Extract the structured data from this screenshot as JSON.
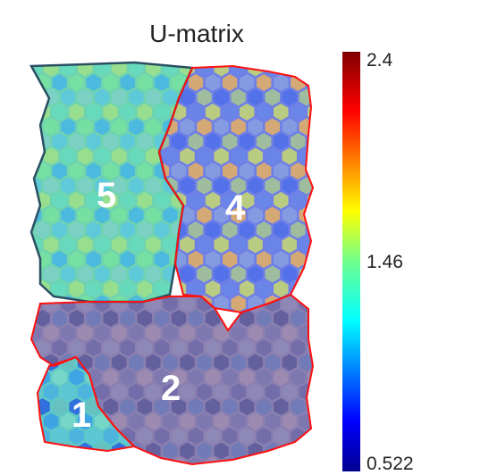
{
  "chart_data": {
    "type": "heatmap",
    "title": "U-matrix",
    "grid": "hexagonal",
    "colorbar": {
      "min": 0.522,
      "max": 2.4,
      "ticks": [
        "2.4",
        "1.46",
        "0.522"
      ],
      "colormap": "jet",
      "orientation": "vertical",
      "position": "right"
    },
    "clusters": [
      {
        "label": "5",
        "outline_color": "#2a4f63",
        "tint": "#6fd3b0"
      },
      {
        "label": "4",
        "outline_color": "#ff1010",
        "tint": "#6f7fe6"
      },
      {
        "label": "2",
        "outline_color": "#ff1010",
        "tint": "#8a7fb0"
      },
      {
        "label": "1",
        "outline_color": "#ff1010",
        "tint": "#5ec8c8"
      }
    ]
  }
}
